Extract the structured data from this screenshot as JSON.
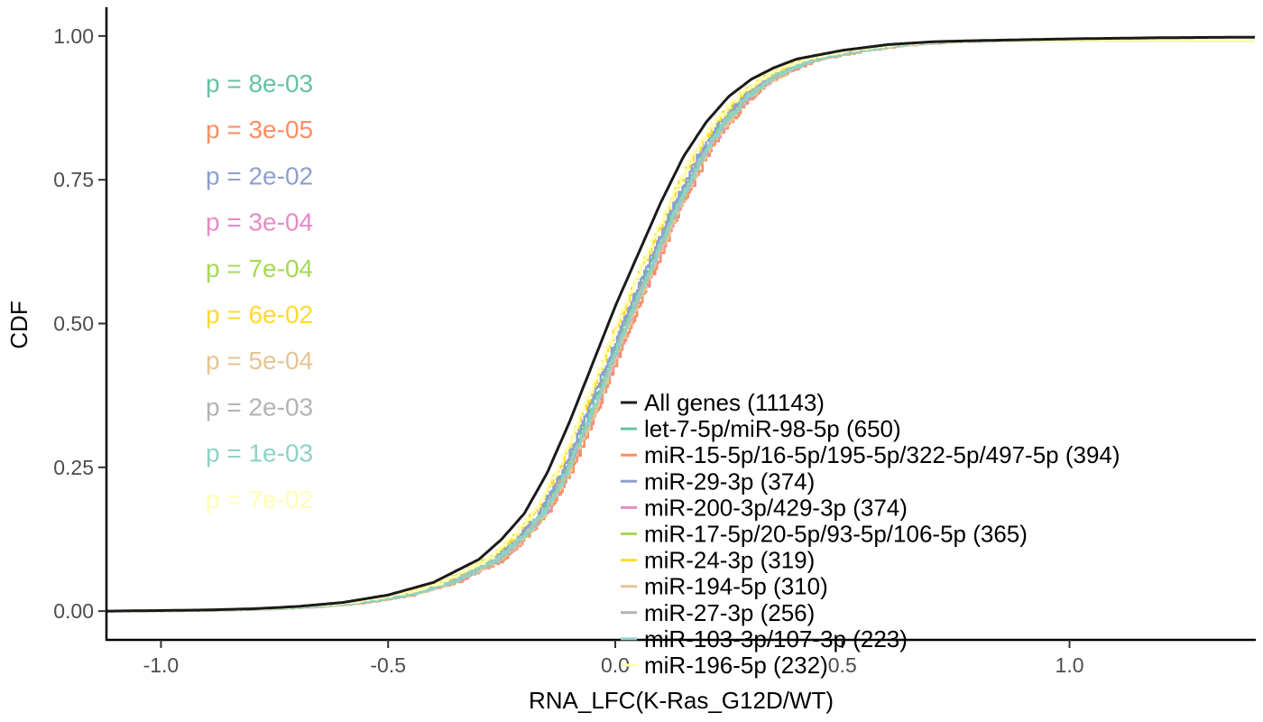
{
  "chart_data": {
    "type": "line",
    "xlabel": "RNA_LFC(K-Ras_G12D/WT)",
    "ylabel": "CDF",
    "xlim": [
      -1.12,
      1.41
    ],
    "ylim": [
      -0.05,
      1.05
    ],
    "x_ticks": [
      {
        "value": -1.0,
        "label": "-1.0"
      },
      {
        "value": -0.5,
        "label": "-0.5"
      },
      {
        "value": 0.0,
        "label": "0.0"
      },
      {
        "value": 0.5,
        "label": "0.5"
      },
      {
        "value": 1.0,
        "label": "1.0"
      }
    ],
    "y_ticks": [
      {
        "value": 0.0,
        "label": "0.00"
      },
      {
        "value": 0.25,
        "label": "0.25"
      },
      {
        "value": 0.5,
        "label": "0.50"
      },
      {
        "value": 0.75,
        "label": "0.75"
      },
      {
        "value": 1.0,
        "label": "1.00"
      }
    ],
    "grid": false,
    "legend_position": "bottom-center",
    "series": [
      {
        "name": "All genes (11143)",
        "color": "#1a1a1a",
        "shift": 0.0,
        "p_label": ""
      },
      {
        "name": "let-7-5p/miR-98-5p (650)",
        "color": "#66c2a5",
        "shift": 0.035,
        "p_label": "p = 8e-03"
      },
      {
        "name": "miR-15-5p/16-5p/195-5p/322-5p/497-5p (394)",
        "color": "#fc8d62",
        "shift": 0.05,
        "p_label": "p = 3e-05"
      },
      {
        "name": "miR-29-3p (374)",
        "color": "#8da0cb",
        "shift": 0.03,
        "p_label": "p = 2e-02"
      },
      {
        "name": "miR-200-3p/429-3p (374)",
        "color": "#e78ac3",
        "shift": 0.045,
        "p_label": "p = 3e-04"
      },
      {
        "name": "miR-17-5p/20-5p/93-5p/106-5p (365)",
        "color": "#a6d854",
        "shift": 0.042,
        "p_label": "p = 7e-04"
      },
      {
        "name": "miR-24-3p (319)",
        "color": "#ffd92f",
        "shift": 0.02,
        "p_label": "p = 6e-02"
      },
      {
        "name": "miR-194-5p (310)",
        "color": "#e5c494",
        "shift": 0.045,
        "p_label": "p = 5e-04"
      },
      {
        "name": "miR-27-3p (256)",
        "color": "#b3b3b3",
        "shift": 0.04,
        "p_label": "p = 2e-03"
      },
      {
        "name": "miR-103-3p/107-3p (223)",
        "color": "#8dd3c7",
        "shift": 0.04,
        "p_label": "p = 1e-03"
      },
      {
        "name": "miR-196-5p (232)",
        "color": "#ffffb3",
        "shift": 0.018,
        "p_label": "p = 7e-02"
      }
    ],
    "all_genes_curve": [
      [
        -1.12,
        0.0
      ],
      [
        -1.0,
        0.001
      ],
      [
        -0.9,
        0.002
      ],
      [
        -0.8,
        0.004
      ],
      [
        -0.7,
        0.008
      ],
      [
        -0.6,
        0.015
      ],
      [
        -0.5,
        0.028
      ],
      [
        -0.4,
        0.05
      ],
      [
        -0.3,
        0.09
      ],
      [
        -0.25,
        0.125
      ],
      [
        -0.2,
        0.17
      ],
      [
        -0.15,
        0.24
      ],
      [
        -0.1,
        0.33
      ],
      [
        -0.05,
        0.43
      ],
      [
        0.0,
        0.53
      ],
      [
        0.05,
        0.62
      ],
      [
        0.1,
        0.71
      ],
      [
        0.15,
        0.79
      ],
      [
        0.2,
        0.85
      ],
      [
        0.25,
        0.895
      ],
      [
        0.3,
        0.925
      ],
      [
        0.35,
        0.945
      ],
      [
        0.4,
        0.96
      ],
      [
        0.5,
        0.975
      ],
      [
        0.6,
        0.985
      ],
      [
        0.7,
        0.99
      ],
      [
        0.8,
        0.992
      ],
      [
        1.0,
        0.995
      ],
      [
        1.2,
        0.997
      ],
      [
        1.41,
        0.998
      ]
    ]
  }
}
